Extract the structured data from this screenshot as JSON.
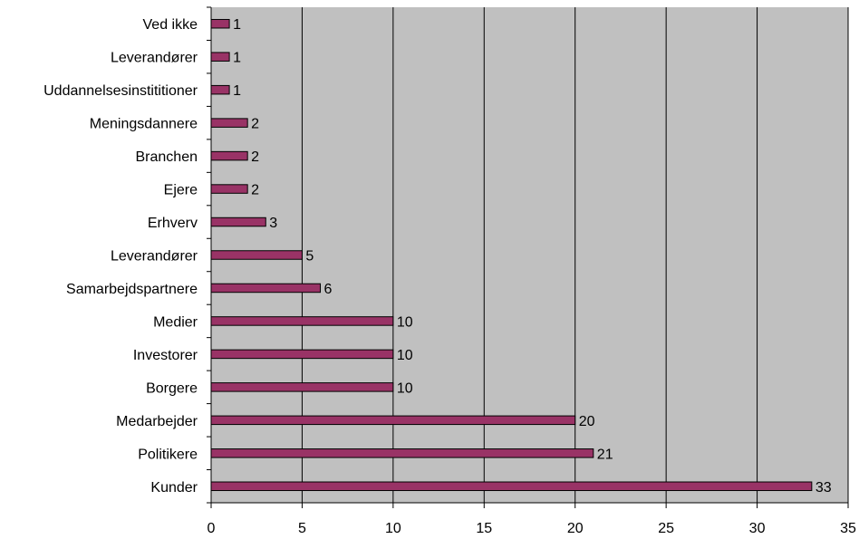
{
  "chart_data": {
    "type": "bar",
    "orientation": "horizontal",
    "title": "",
    "xlabel": "",
    "ylabel": "",
    "categories": [
      "Ved ikke",
      "Leverandører",
      "Uddannelsesinstititioner",
      "Meningsdannere",
      "Branchen",
      "Ejere",
      "Erhverv",
      "Leverandører",
      "Samarbejdspartnere",
      "Medier",
      "Investorer",
      "Borgere",
      "Medarbejder",
      "Politikere",
      "Kunder"
    ],
    "values": [
      1,
      1,
      1,
      2,
      2,
      2,
      3,
      5,
      6,
      10,
      10,
      10,
      20,
      21,
      33
    ],
    "xlim": [
      0,
      35
    ],
    "xticks": [
      0,
      5,
      10,
      15,
      20,
      25,
      30,
      35
    ],
    "grid": "vertical",
    "legend": "none",
    "colors": {
      "bar_fill": "#993366",
      "bar_stroke": "#000000",
      "plot_background": "#c0c0c0",
      "gridline": "#000000"
    }
  }
}
